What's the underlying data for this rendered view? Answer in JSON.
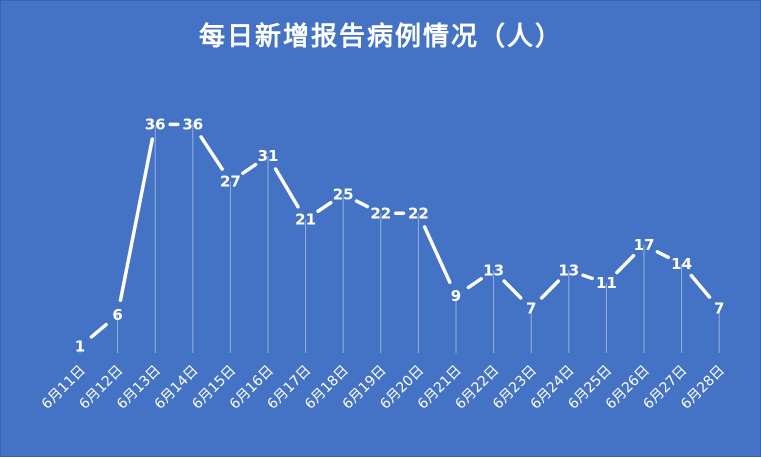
{
  "title": "每日新增报告病例情况（人）",
  "colors": {
    "background": "#4472c4",
    "line": "#ffffff",
    "text": "#ffffff"
  },
  "chart_data": {
    "type": "line",
    "title": "每日新增报告病例情况（人）",
    "xlabel": "",
    "ylabel": "",
    "categories": [
      "6月11日",
      "6月12日",
      "6月13日",
      "6月14日",
      "6月15日",
      "6月16日",
      "6月17日",
      "6月18日",
      "6月19日",
      "6月20日",
      "6月21日",
      "6月22日",
      "6月23日",
      "6月24日",
      "6月25日",
      "6月26日",
      "6月27日",
      "6月28日"
    ],
    "values": [
      1,
      6,
      36,
      36,
      27,
      31,
      21,
      25,
      22,
      22,
      9,
      13,
      7,
      13,
      11,
      17,
      14,
      7
    ],
    "ylim": [
      0,
      40
    ],
    "grid": false,
    "legend": "none",
    "data_labels": true,
    "drop_lines": true
  }
}
